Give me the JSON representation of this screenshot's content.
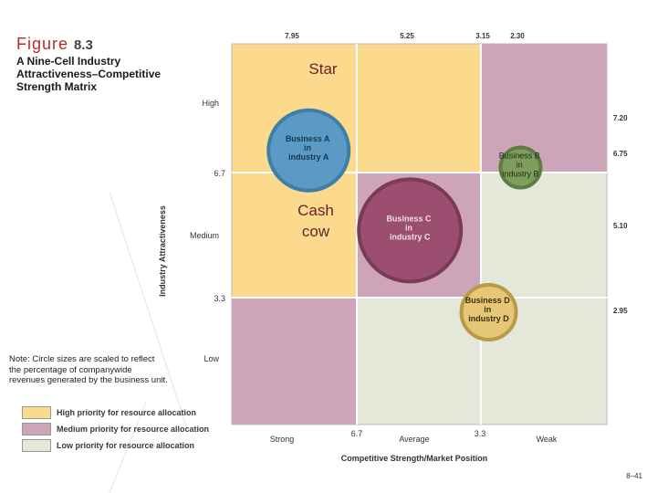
{
  "figure": {
    "word": "Figure",
    "number": "8.3"
  },
  "caption": "A Nine-Cell Industry Attractiveness–Competitive Strength Matrix",
  "note": "Note: Circle sizes are scaled to reflect the percentage of companywide revenues generated by the business unit.",
  "colors": {
    "high": "#fbd98d",
    "medium": "#cea4b9",
    "low": "#e3e8d9"
  },
  "axes": {
    "x_title": "Competitive Strength/Market Position",
    "y_title": "Industry Attractiveness",
    "x_categories": [
      "Strong",
      "Average",
      "Weak"
    ],
    "y_categories": [
      "High",
      "Medium",
      "Low"
    ],
    "x_divider_labels": [
      "6.7",
      "3.3"
    ],
    "y_divider_labels": [
      "6.7",
      "3.3"
    ],
    "top_ticks": [
      "7.95",
      "5.25",
      "3.15",
      "2.30"
    ],
    "right_ticks": [
      "7.20",
      "6.75",
      "5.10",
      "2.95"
    ]
  },
  "grid": [
    [
      "high",
      "high",
      "medium"
    ],
    [
      "high",
      "medium",
      "low"
    ],
    [
      "medium",
      "low",
      "low"
    ]
  ],
  "businesses": [
    {
      "lines": [
        "Business A",
        "in",
        "industry A"
      ],
      "strength": 7.95,
      "attractiveness": 7.2,
      "radius": 44,
      "fill": "#5b9ac4",
      "stroke": "#3f7fa6"
    },
    {
      "lines": [
        "Business B",
        "in",
        "industry B"
      ],
      "strength": 2.3,
      "attractiveness": 6.75,
      "radius": 22,
      "fill": "#7f9e5e",
      "stroke": "#5f7d43"
    },
    {
      "lines": [
        "Business C",
        "in",
        "industry C"
      ],
      "strength": 5.25,
      "attractiveness": 5.1,
      "radius": 56,
      "fill": "#9b4e70",
      "stroke": "#7a3a58"
    },
    {
      "lines": [
        "Business D",
        "in",
        "industry D"
      ],
      "strength": 3.15,
      "attractiveness": 2.95,
      "radius": 30,
      "fill": "#e6c778",
      "stroke": "#b99a45"
    }
  ],
  "annotations": {
    "star": "Star",
    "cash": "Cash",
    "cow": "cow"
  },
  "legend": [
    {
      "label": "High priority for resource allocation",
      "color": "#fbd98d"
    },
    {
      "label": "Medium priority for resource allocation",
      "color": "#cea4b9"
    },
    {
      "label": "Low priority for resource allocation",
      "color": "#e3e8d9"
    }
  ],
  "page_number": "8–41"
}
